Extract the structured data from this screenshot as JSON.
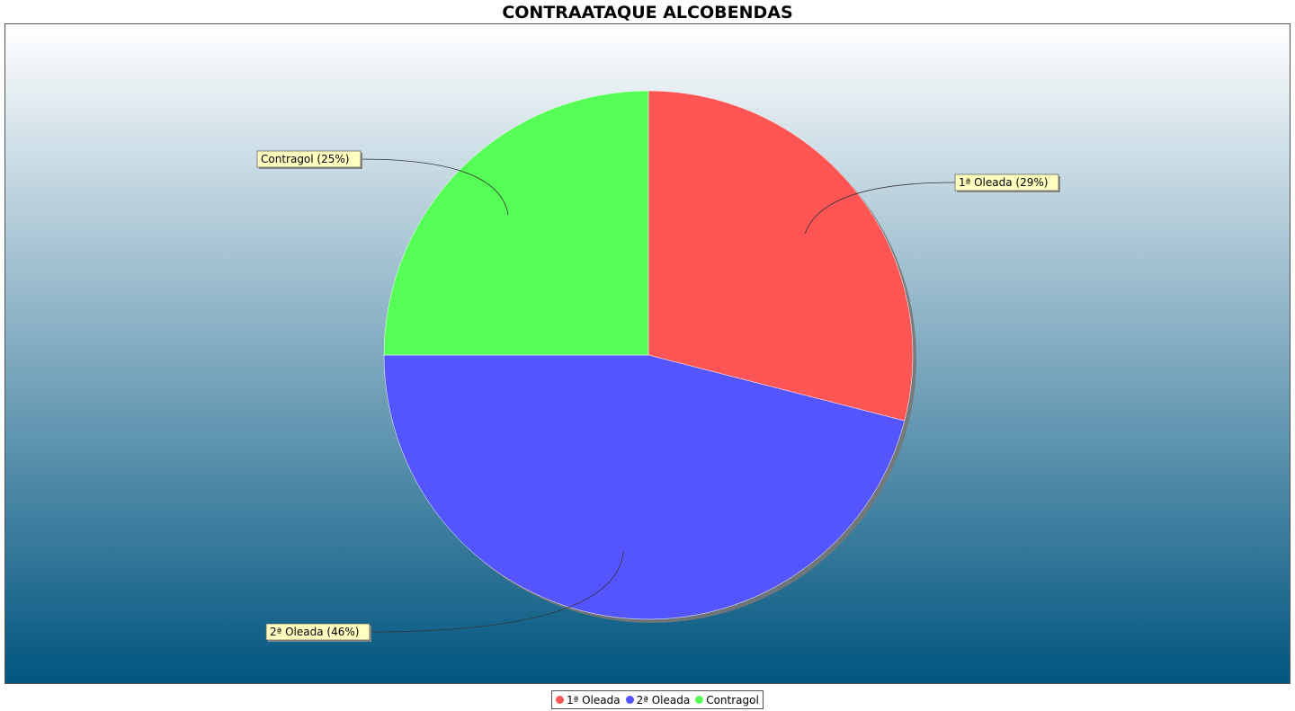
{
  "chart_data": {
    "type": "pie",
    "title": "CONTRAATAQUE ALCOBENDAS",
    "categories": [
      "1ª Oleada",
      "2ª Oleada",
      "Contragol"
    ],
    "values": [
      29,
      46,
      25
    ],
    "labels": [
      "1ª Oleada (29%)",
      "2ª Oleada (46%)",
      "Contragol (25%)"
    ],
    "colors": [
      "#ff5555",
      "#5555ff",
      "#55ff55"
    ],
    "legend": "bottom",
    "background_gradient": [
      "#ffffff",
      "#00557f"
    ]
  }
}
